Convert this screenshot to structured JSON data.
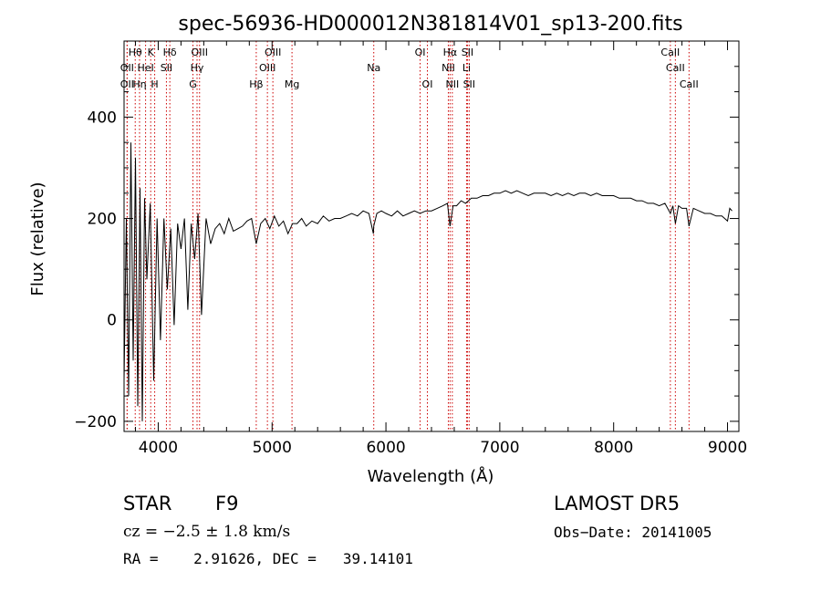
{
  "chart_data": {
    "type": "line",
    "title": "spec-56936-HD000012N381814V01_sp13-200.fits",
    "xlabel": "Wavelength (Å)",
    "ylabel": "Flux (relative)",
    "xlim": [
      3700,
      9100
    ],
    "ylim": [
      -220,
      550
    ],
    "x_ticks": [
      4000,
      5000,
      6000,
      7000,
      8000,
      9000
    ],
    "y_ticks": [
      -200,
      0,
      200,
      400
    ],
    "grid": false,
    "series": [
      {
        "x": [
          3700,
          3720,
          3740,
          3760,
          3780,
          3800,
          3820,
          3840,
          3860,
          3880,
          3900,
          3930,
          3960,
          3990,
          4020,
          4050,
          4080,
          4110,
          4140,
          4170,
          4200,
          4230,
          4260,
          4290,
          4320,
          4350,
          4380,
          4420,
          4460,
          4500,
          4540,
          4580,
          4620,
          4660,
          4700,
          4740,
          4780,
          4820,
          4861,
          4900,
          4940,
          4980,
          5020,
          5060,
          5100,
          5140,
          5180,
          5220,
          5260,
          5300,
          5350,
          5400,
          5450,
          5500,
          5550,
          5600,
          5650,
          5700,
          5750,
          5800,
          5850,
          5890,
          5893,
          5920,
          5960,
          6000,
          6050,
          6100,
          6150,
          6200,
          6250,
          6300,
          6350,
          6400,
          6450,
          6500,
          6540,
          6563,
          6590,
          6620,
          6660,
          6700,
          6750,
          6800,
          6850,
          6900,
          6950,
          7000,
          7050,
          7100,
          7150,
          7200,
          7250,
          7300,
          7350,
          7400,
          7450,
          7500,
          7550,
          7600,
          7650,
          7700,
          7750,
          7800,
          7850,
          7900,
          7950,
          8000,
          8050,
          8100,
          8150,
          8200,
          8250,
          8300,
          8350,
          8400,
          8450,
          8498,
          8520,
          8542,
          8570,
          8600,
          8640,
          8662,
          8700,
          8750,
          8800,
          8850,
          8900,
          8950,
          9000,
          9020,
          9040
        ],
        "y": [
          -120,
          200,
          -150,
          350,
          -80,
          320,
          -170,
          260,
          -200,
          240,
          80,
          230,
          -120,
          200,
          -40,
          200,
          60,
          180,
          -10,
          190,
          140,
          200,
          20,
          190,
          120,
          210,
          10,
          200,
          150,
          180,
          190,
          170,
          200,
          175,
          180,
          185,
          195,
          200,
          150,
          190,
          200,
          180,
          205,
          185,
          195,
          170,
          190,
          190,
          200,
          185,
          195,
          190,
          205,
          195,
          200,
          200,
          205,
          210,
          205,
          215,
          210,
          170,
          185,
          210,
          215,
          210,
          205,
          215,
          205,
          210,
          215,
          210,
          215,
          215,
          220,
          225,
          230,
          185,
          225,
          225,
          235,
          230,
          240,
          240,
          245,
          245,
          250,
          250,
          255,
          250,
          255,
          250,
          245,
          250,
          250,
          250,
          245,
          250,
          245,
          250,
          245,
          250,
          250,
          245,
          250,
          245,
          245,
          245,
          240,
          240,
          240,
          235,
          235,
          230,
          230,
          225,
          230,
          210,
          225,
          190,
          225,
          220,
          220,
          185,
          220,
          215,
          210,
          210,
          205,
          205,
          195,
          220,
          215
        ]
      }
    ],
    "line_markers": [
      {
        "label": "OII",
        "x": 3727,
        "row": 2
      },
      {
        "label": "Hθ",
        "x": 3798,
        "row": 1
      },
      {
        "label": "OII",
        "x": 3727,
        "row": 3
      },
      {
        "label": "Hη",
        "x": 3836,
        "row": 3
      },
      {
        "label": "HeI",
        "x": 3889,
        "row": 2
      },
      {
        "label": "K",
        "x": 3934,
        "row": 1
      },
      {
        "label": "H",
        "x": 3969,
        "row": 3
      },
      {
        "label": "SII",
        "x": 4072,
        "row": 2
      },
      {
        "label": "Hδ",
        "x": 4102,
        "row": 1
      },
      {
        "label": "OIII",
        "x": 4363,
        "row": 1
      },
      {
        "label": "Hγ",
        "x": 4341,
        "row": 2
      },
      {
        "label": "G",
        "x": 4305,
        "row": 3
      },
      {
        "label": "Hβ",
        "x": 4861,
        "row": 3
      },
      {
        "label": "OIII",
        "x": 5007,
        "row": 1
      },
      {
        "label": "OIII",
        "x": 4959,
        "row": 2
      },
      {
        "label": "Mg",
        "x": 5175,
        "row": 3
      },
      {
        "label": "Na",
        "x": 5893,
        "row": 2
      },
      {
        "label": "OI",
        "x": 6300,
        "row": 1
      },
      {
        "label": "OI",
        "x": 6364,
        "row": 3
      },
      {
        "label": "Hα",
        "x": 6563,
        "row": 1
      },
      {
        "label": "NII",
        "x": 6548,
        "row": 2
      },
      {
        "label": "NII",
        "x": 6583,
        "row": 3
      },
      {
        "label": "SII",
        "x": 6716,
        "row": 1
      },
      {
        "label": "Li",
        "x": 6708,
        "row": 2
      },
      {
        "label": "SII",
        "x": 6731,
        "row": 3
      },
      {
        "label": "CaII",
        "x": 8498,
        "row": 1
      },
      {
        "label": "CaII",
        "x": 8542,
        "row": 2
      },
      {
        "label": "CaII",
        "x": 8662,
        "row": 3
      }
    ]
  },
  "info": {
    "object_class": "STAR",
    "subclass": "F9",
    "survey": "LAMOST DR5",
    "cz_line": "cz = −2.5 ± 1.8 km/s",
    "obs_date": "Obs−Date: 20141005",
    "coords": "RA =    2.91626, DEC =   39.14101"
  },
  "colors": {
    "spectrum": "#000000",
    "marker_line": "#cc0000",
    "text": "#000000",
    "background": "#ffffff"
  }
}
